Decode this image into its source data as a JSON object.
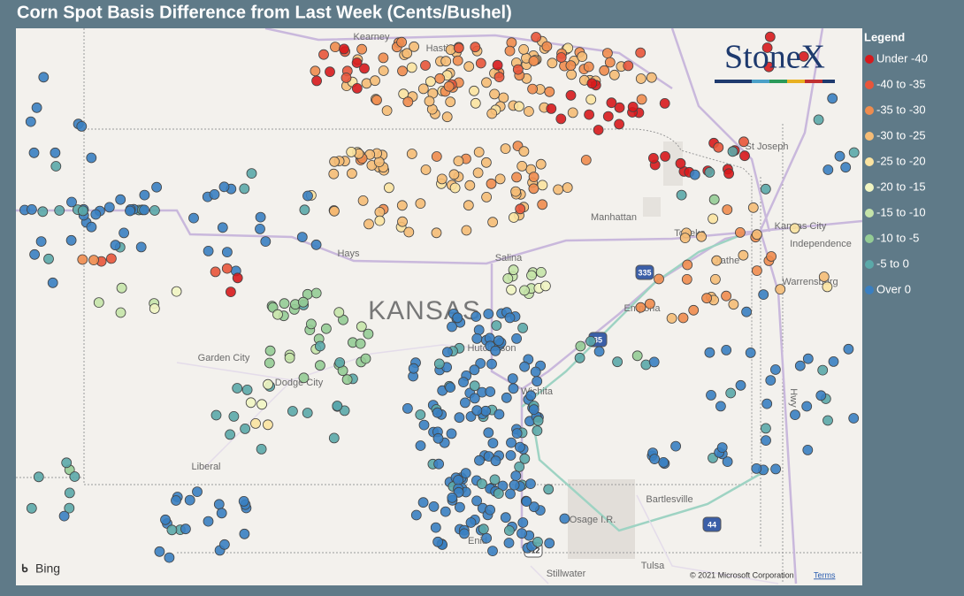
{
  "header": {
    "title": "Corn Spot Basis Difference from Last Week (Cents/Bushel)"
  },
  "legend": {
    "title": "Legend",
    "items": [
      {
        "label": "Under -40",
        "color": "#d7191c"
      },
      {
        "label": "-40 to -35",
        "color": "#e8553a"
      },
      {
        "label": "-35 to -30",
        "color": "#ef8c4e"
      },
      {
        "label": "-30 to -25",
        "color": "#f5bc76"
      },
      {
        "label": "-25 to -20",
        "color": "#fbe3a0"
      },
      {
        "label": "-20 to -15",
        "color": "#f1f5c2"
      },
      {
        "label": "-15 to -10",
        "color": "#c5e4a9"
      },
      {
        "label": "-10 to -5",
        "color": "#95cc95"
      },
      {
        "label": "-5 to 0",
        "color": "#5ba9a9"
      },
      {
        "label": "Over 0",
        "color": "#3a7fc1"
      }
    ]
  },
  "map": {
    "labels": [
      "Kearney",
      "Hastings",
      "St Joseph",
      "Manhattan",
      "Topeka",
      "Kansas City",
      "Independence",
      "Olathe",
      "Warrensburg",
      "Hays",
      "Salina",
      "KANSAS",
      "Hutchinson",
      "Emporia",
      "Garden City",
      "Dodge City",
      "Wichita",
      "Liberal",
      "Bartlesville",
      "Osage I.R.",
      "Enid",
      "Tulsa",
      "Stillwater",
      "Hwy"
    ],
    "shields": [
      "335",
      "35",
      "44",
      "412"
    ],
    "logo": "StoneX",
    "attribution": "Bing",
    "copyright": "© 2021 Microsoft Corporation",
    "terms": "Terms"
  }
}
